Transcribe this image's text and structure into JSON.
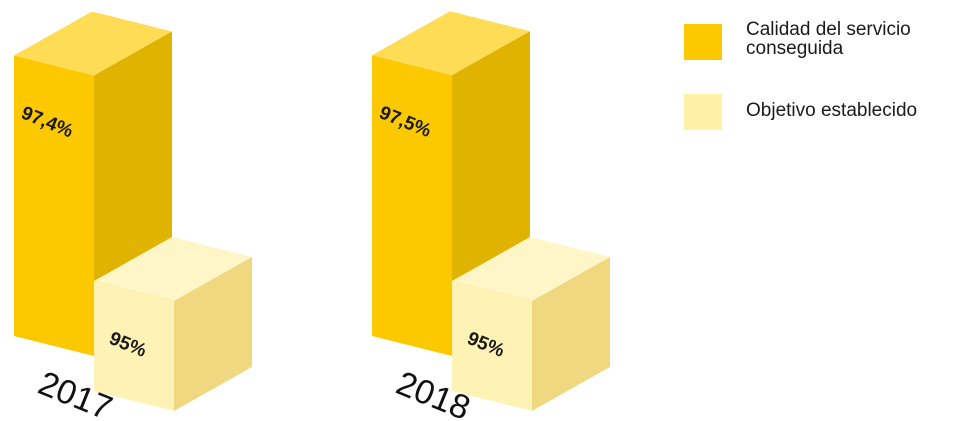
{
  "chart_data": {
    "type": "bar",
    "categories": [
      "2017",
      "2018"
    ],
    "series": [
      {
        "name": "Calidad del servicio conseguida",
        "values": [
          97.4,
          97.5
        ],
        "labels": [
          "97,4%",
          "97,5%"
        ],
        "color": "#fcc800"
      },
      {
        "name": "Objetivo establecido",
        "values": [
          95,
          95
        ],
        "labels": [
          "95%",
          "95%"
        ],
        "color": "#fff0a8"
      }
    ],
    "style": "3d-isometric",
    "legend_position": "top-right"
  },
  "colors": {
    "achieved_front": "#fcc800",
    "achieved_side": "#e0b300",
    "achieved_top": "#fedc55",
    "target_front": "#fff2b5",
    "target_side": "#f0d880",
    "target_top": "#fff6c8"
  }
}
